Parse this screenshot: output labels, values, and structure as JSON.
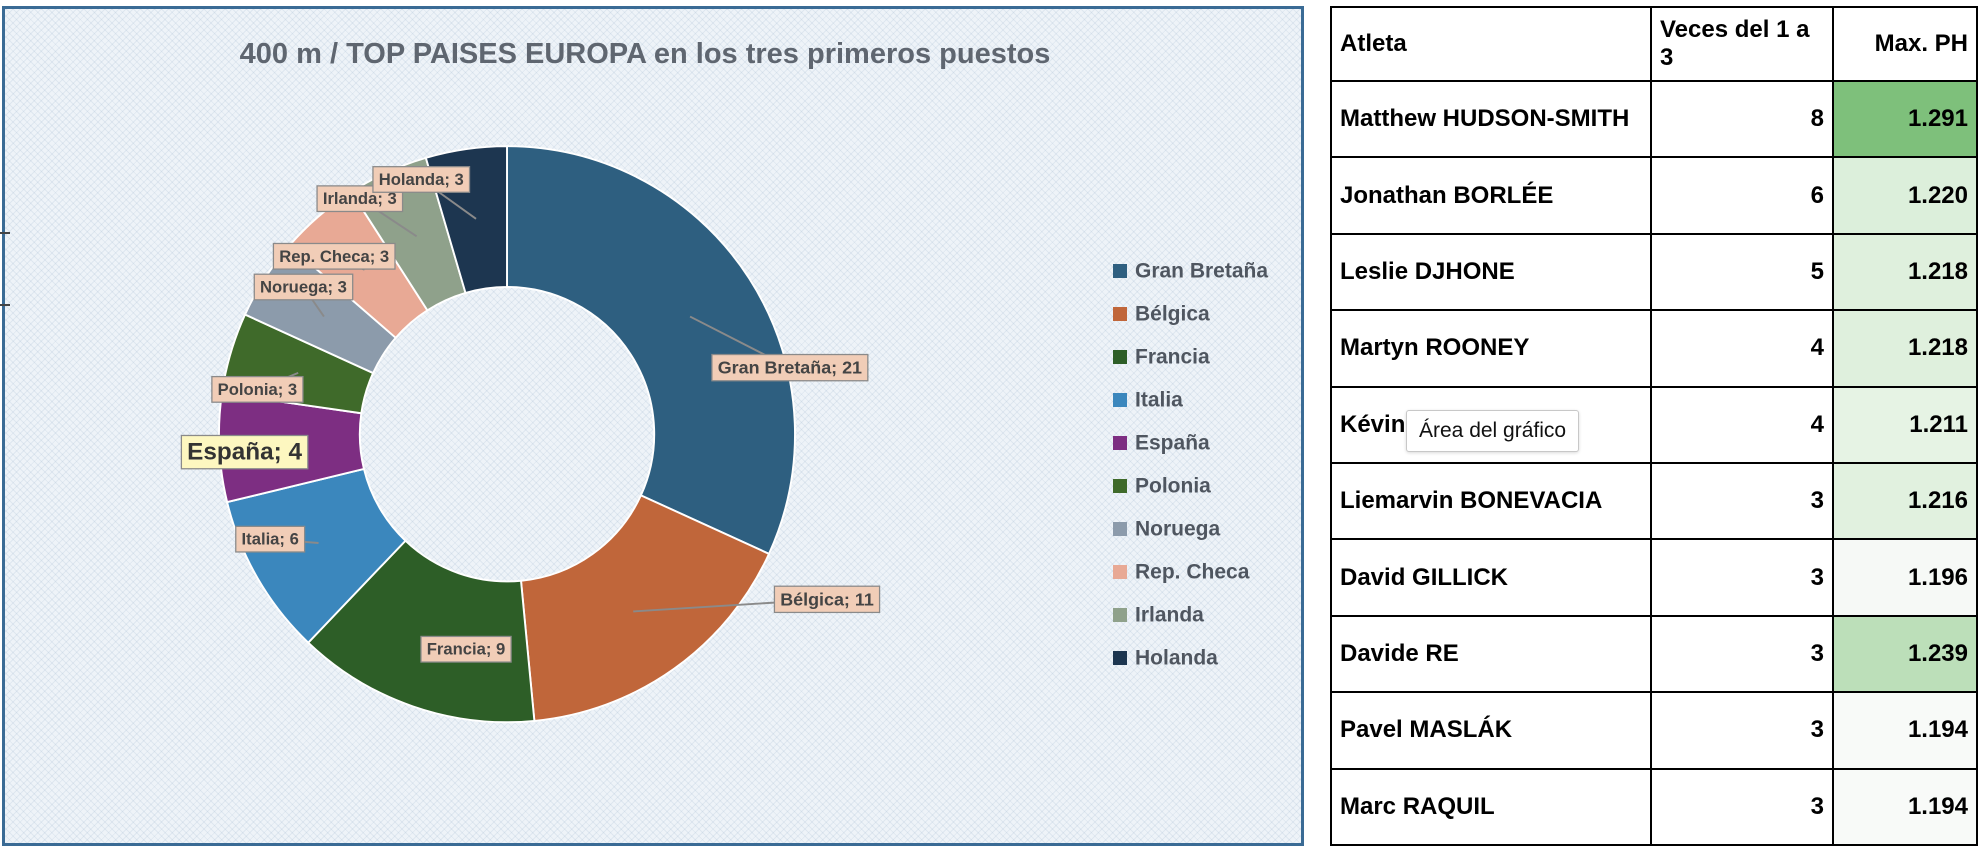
{
  "chart_data": {
    "type": "pie",
    "title": "400 m / TOP  PAISES EUROPA en los tres primeros puestos",
    "categories": [
      "Gran Bretaña",
      "Bélgica",
      "Francia",
      "Italia",
      "España",
      "Polonia",
      "Noruega",
      "Rep. Checa",
      "Irlanda",
      "Holanda"
    ],
    "values": [
      21,
      11,
      9,
      6,
      4,
      3,
      3,
      3,
      3,
      3
    ],
    "data_labels": [
      "Gran Bretaña; 21",
      "Bélgica; 11",
      "Francia; 9",
      "Italia; 6",
      "España; 4",
      "Polonia; 3",
      "Noruega; 3",
      "Rep. Checa; 3",
      "Irlanda; 3",
      "Holanda; 3"
    ],
    "colors": [
      "#2e5f80",
      "#c0663a",
      "#2d5e27",
      "#3b87bd",
      "#7d2e82",
      "#3f6a2a",
      "#8c9bab",
      "#e8a995",
      "#8fa18b",
      "#1d3650"
    ],
    "legend_position": "right",
    "style": "doughnut"
  },
  "tooltip": "Área del gráfico",
  "table": {
    "headers": [
      "Atleta",
      "Veces del 1 a 3",
      "Max. PH"
    ],
    "rows": [
      {
        "name": "Matthew HUDSON-SMITH",
        "times": "8",
        "ph": "1.291",
        "shade": "#7ec07b"
      },
      {
        "name": "Jonathan BORLÉE",
        "times": "6",
        "ph": "1.220",
        "shade": "#dcefdb"
      },
      {
        "name": "Leslie DJHONE",
        "times": "5",
        "ph": "1.218",
        "shade": "#dff0dd"
      },
      {
        "name": "Martyn ROONEY",
        "times": "4",
        "ph": "1.218",
        "shade": "#dff0dd"
      },
      {
        "name": "Kévin",
        "times": "4",
        "ph": "1.211",
        "shade": "#e6f3e4"
      },
      {
        "name": "Liemarvin BONEVACIA",
        "times": "3",
        "ph": "1.216",
        "shade": "#e1f1df"
      },
      {
        "name": "David GILLICK",
        "times": "3",
        "ph": "1.196",
        "shade": "#f6f9f6"
      },
      {
        "name": "Davide RE",
        "times": "3",
        "ph": "1.239",
        "shade": "#bcdfb9"
      },
      {
        "name": "Pavel MASLÁK",
        "times": "3",
        "ph": "1.194",
        "shade": "#f8faf8"
      },
      {
        "name": "Marc RAQUIL",
        "times": "3",
        "ph": "1.194",
        "shade": "#f8faf8"
      }
    ]
  }
}
